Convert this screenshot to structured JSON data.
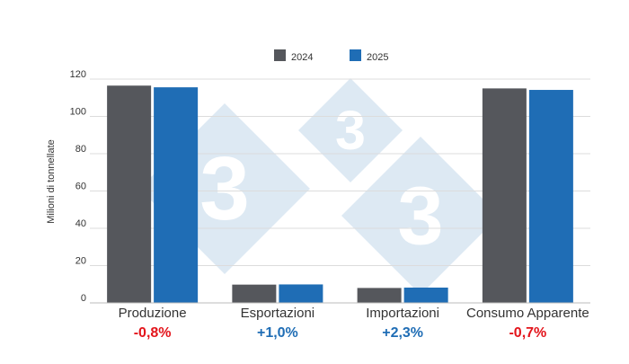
{
  "chart_data": {
    "type": "bar",
    "title": "",
    "xlabel": "",
    "ylabel": "Milioni di tonnellate",
    "ylim": [
      0,
      120
    ],
    "yticks": [
      0,
      20,
      40,
      60,
      80,
      100,
      120
    ],
    "grid": true,
    "legend_position": "top-center",
    "categories": [
      "Produzione",
      "Esportazioni",
      "Importazioni",
      "Consumo Apparente"
    ],
    "series": [
      {
        "name": "2024",
        "color": "#55575c",
        "values": [
          116.5,
          9.8,
          8.0,
          115.0
        ]
      },
      {
        "name": "2025",
        "color": "#1f6db5",
        "values": [
          115.6,
          9.9,
          8.2,
          114.2
        ]
      }
    ],
    "changes": [
      {
        "text": "-0,8%",
        "color": "#e3141b"
      },
      {
        "text": "+1,0%",
        "color": "#1f6db5"
      },
      {
        "text": "+2,3%",
        "color": "#1f6db5"
      },
      {
        "text": "-0,7%",
        "color": "#e3141b"
      }
    ],
    "watermark": {
      "glyph": "3",
      "color": "#dde9f3"
    }
  }
}
